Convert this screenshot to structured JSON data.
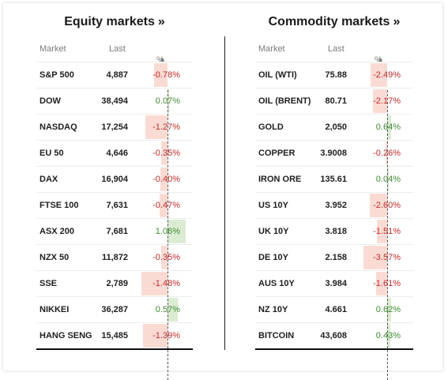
{
  "equity": {
    "title": "Equity markets",
    "raquo": "»",
    "headers": {
      "market": "Market",
      "last": "Last",
      "pct": "%",
      "sort": "▲"
    },
    "rows": [
      {
        "market": "S&P 500",
        "last": "4,887",
        "pct": "-0.78%"
      },
      {
        "market": "DOW",
        "last": "38,494",
        "pct": "0.07%"
      },
      {
        "market": "NASDAQ",
        "last": "17,254",
        "pct": "-1.27%"
      },
      {
        "market": "EU 50",
        "last": "4,646",
        "pct": "-0.35%"
      },
      {
        "market": "DAX",
        "last": "16,904",
        "pct": "-0.40%"
      },
      {
        "market": "FTSE 100",
        "last": "7,631",
        "pct": "-0.47%"
      },
      {
        "market": "ASX 200",
        "last": "7,681",
        "pct": "1.06%"
      },
      {
        "market": "NZX 50",
        "last": "11,872",
        "pct": "-0.35%"
      },
      {
        "market": "SSE",
        "last": "2,789",
        "pct": "-1.48%"
      },
      {
        "market": "NIKKEI",
        "last": "36,287",
        "pct": "0.57%"
      },
      {
        "market": "HANG SENG",
        "last": "15,485",
        "pct": "-1.39%"
      }
    ]
  },
  "commodity": {
    "title": "Commodity markets",
    "raquo": "»",
    "headers": {
      "market": "Market",
      "last": "Last",
      "pct": "%",
      "sort": "▲"
    },
    "rows": [
      {
        "market": "OIL (WTI)",
        "last": "75.88",
        "pct": "-2.49%"
      },
      {
        "market": "OIL (BRENT)",
        "last": "80.71",
        "pct": "-2.17%"
      },
      {
        "market": "GOLD",
        "last": "2,050",
        "pct": "0.64%"
      },
      {
        "market": "COPPER",
        "last": "3.9008",
        "pct": "-0.26%"
      },
      {
        "market": "IRON ORE",
        "last": "135.61",
        "pct": "0.04%"
      },
      {
        "market": "US 10Y",
        "last": "3.952",
        "pct": "-2.60%"
      },
      {
        "market": "UK 10Y",
        "last": "3.818",
        "pct": "-1.51%"
      },
      {
        "market": "DE 10Y",
        "last": "2.158",
        "pct": "-3.57%"
      },
      {
        "market": "AUS 10Y",
        "last": "3.984",
        "pct": "-1.61%"
      },
      {
        "market": "NZ 10Y",
        "last": "4.661",
        "pct": "0.62%"
      },
      {
        "market": "BITCOIN",
        "last": "43,608",
        "pct": "0.43%"
      }
    ]
  },
  "colors": {
    "negative": "#c42a2a",
    "positive": "#3e8a31",
    "negative_bar": "#fadbd3",
    "positive_bar": "#dcecd3"
  }
}
